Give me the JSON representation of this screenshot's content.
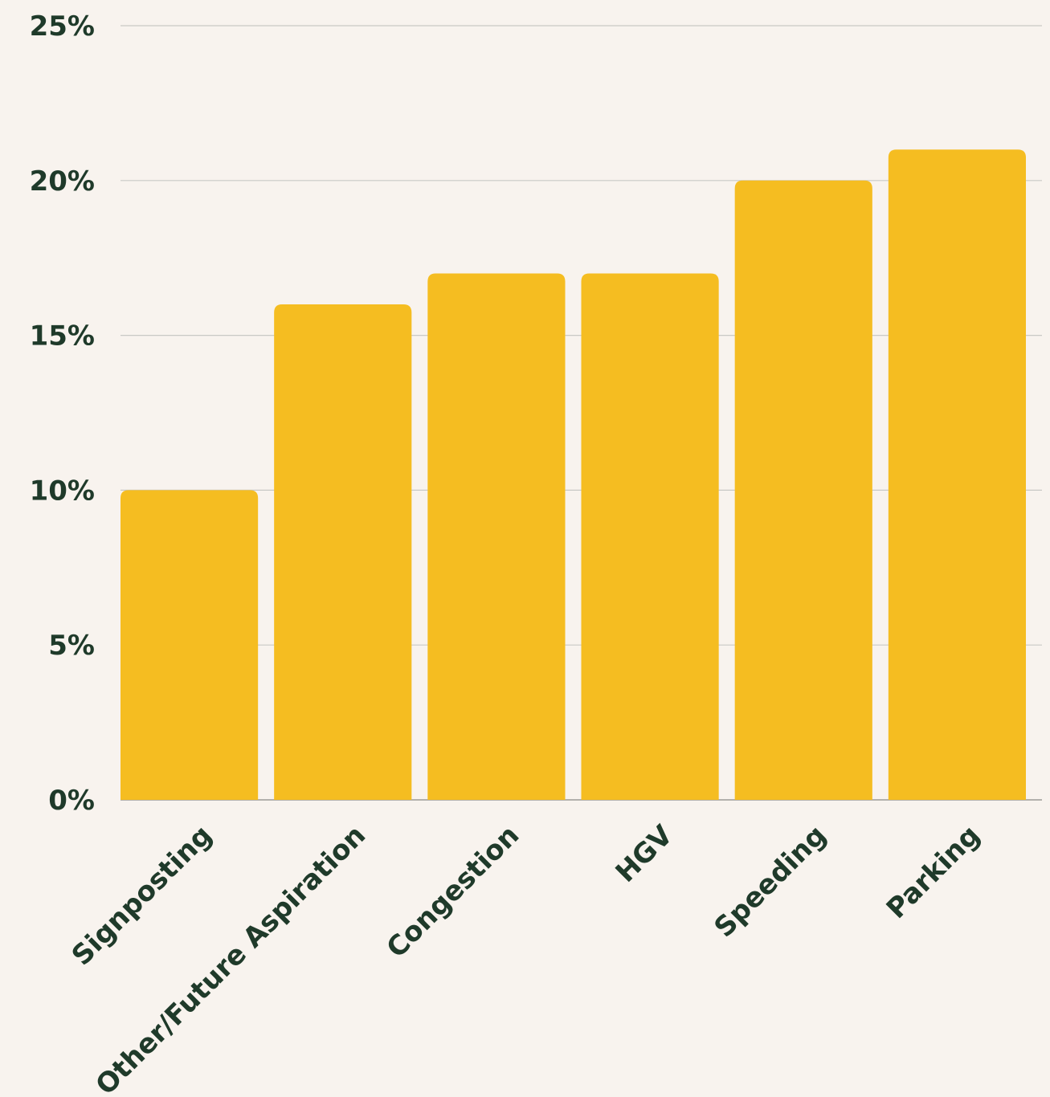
{
  "chart_data": {
    "type": "bar",
    "categories": [
      "Signposting",
      "Other/Future Aspiration",
      "Congestion",
      "HGV",
      "Speeding",
      "Parking"
    ],
    "values": [
      10,
      16,
      17,
      17,
      20,
      21
    ],
    "title": "",
    "xlabel": "",
    "ylabel": "",
    "ylim": [
      0,
      25
    ],
    "yticks": [
      0,
      5,
      10,
      15,
      20,
      25
    ],
    "ytick_format": "%",
    "grid": true,
    "x_tick_rotation_deg": -45,
    "colors": {
      "bar": "#f5bd21",
      "text": "#1f3a2a",
      "grid": "#c9c9c5",
      "background": "#f8f3ee"
    }
  }
}
